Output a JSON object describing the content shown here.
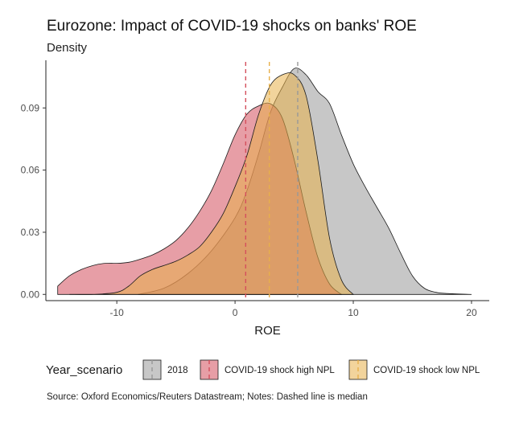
{
  "title": "Eurozone: Impact of COVID-19 shocks on banks' ROE",
  "subtitle": "Density",
  "source": "Source: Oxford Economics/Reuters Datastream; Notes: Dashed line is median",
  "chart_data": {
    "type": "area",
    "title": "Eurozone: Impact of COVID-19 shocks on banks' ROE",
    "ylabel": "Density",
    "xlabel": "ROE",
    "xlim": [
      -16,
      21.5
    ],
    "ylim": [
      -0.003,
      0.113
    ],
    "xticks": [
      -10,
      0,
      10,
      20
    ],
    "xtick_labels": [
      "-10",
      "0",
      "10",
      "20"
    ],
    "yticks": [
      0.0,
      0.03,
      0.06,
      0.09
    ],
    "ytick_labels": [
      "0.00",
      "0.03",
      "0.06",
      "0.09"
    ],
    "grid": false,
    "legend_title": "Year_scenario",
    "legend_position": "bottom",
    "series": [
      {
        "name": "2018",
        "color": "#999999",
        "median": 5.3,
        "x": [
          -8.2,
          -6,
          -4,
          -2,
          0,
          1,
          2,
          3,
          4,
          5,
          6,
          7,
          8,
          9,
          10,
          11,
          12,
          13,
          14,
          15,
          16,
          17,
          18,
          20
        ],
        "y": [
          0.0,
          0.003,
          0.01,
          0.021,
          0.037,
          0.05,
          0.068,
          0.088,
          0.1,
          0.109,
          0.106,
          0.098,
          0.092,
          0.077,
          0.063,
          0.052,
          0.042,
          0.032,
          0.02,
          0.009,
          0.003,
          0.001,
          0.0004,
          0.0
        ]
      },
      {
        "name": "COVID-19 shock high NPL",
        "color": "#d44f5c",
        "median": 0.9,
        "x": [
          -15,
          -14,
          -13,
          -12,
          -11,
          -10,
          -9,
          -8,
          -7,
          -6,
          -5,
          -4,
          -3,
          -2,
          -1,
          0,
          1,
          2,
          3,
          4,
          5,
          6,
          7,
          8,
          9
        ],
        "y": [
          0.004,
          0.009,
          0.012,
          0.014,
          0.015,
          0.015,
          0.0155,
          0.017,
          0.019,
          0.022,
          0.026,
          0.032,
          0.04,
          0.05,
          0.063,
          0.077,
          0.087,
          0.091,
          0.092,
          0.085,
          0.065,
          0.04,
          0.018,
          0.005,
          0.0
        ]
      },
      {
        "name": "COVID-19 shock low NPL",
        "color": "#e8b04a",
        "median": 2.9,
        "x": [
          -14,
          -12,
          -10,
          -9,
          -8,
          -7,
          -6,
          -5,
          -4,
          -3,
          -2,
          -1,
          0,
          1,
          2,
          3,
          4,
          5,
          6,
          7,
          8,
          9,
          10
        ],
        "y": [
          0.0,
          0.0,
          0.001,
          0.004,
          0.009,
          0.012,
          0.014,
          0.016,
          0.019,
          0.023,
          0.03,
          0.039,
          0.052,
          0.067,
          0.087,
          0.101,
          0.106,
          0.106,
          0.096,
          0.065,
          0.027,
          0.007,
          0.0
        ]
      }
    ]
  }
}
